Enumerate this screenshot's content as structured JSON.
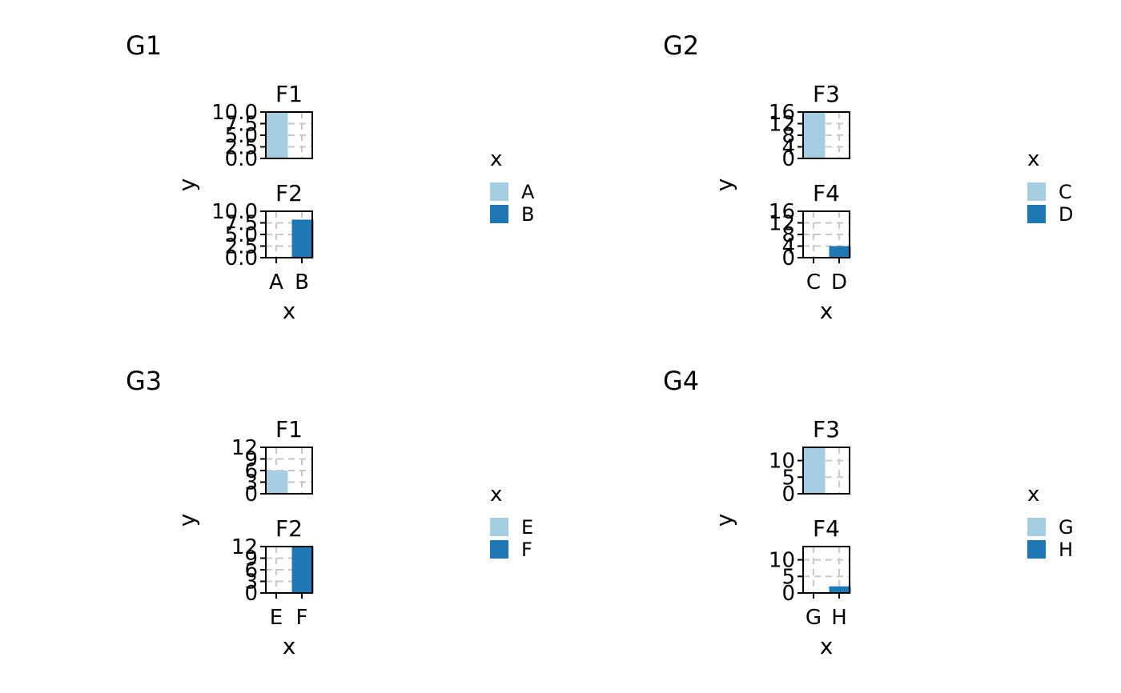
{
  "chart_data": [
    {
      "type": "bar",
      "title": "G1",
      "xlabel": "x",
      "ylabel": "y",
      "legend": {
        "title": "x",
        "placement": "right",
        "items": [
          "A",
          "B"
        ]
      },
      "grid": true,
      "facets": [
        {
          "label": "F1",
          "categories": [
            "A",
            "B"
          ],
          "values": [
            10,
            null
          ],
          "ylim": [
            0,
            10
          ],
          "yticks": [
            "0.0",
            "2.5",
            "5.0",
            "7.5",
            "10.0"
          ]
        },
        {
          "label": "F2",
          "categories": [
            "A",
            "B"
          ],
          "values": [
            null,
            8.2
          ],
          "ylim": [
            0,
            10
          ],
          "yticks": [
            "0.0",
            "2.5",
            "5.0",
            "7.5",
            "10.0"
          ]
        }
      ]
    },
    {
      "type": "bar",
      "title": "G2",
      "xlabel": "x",
      "ylabel": "y",
      "legend": {
        "title": "x",
        "placement": "right",
        "items": [
          "C",
          "D"
        ]
      },
      "grid": true,
      "facets": [
        {
          "label": "F3",
          "categories": [
            "C",
            "D"
          ],
          "values": [
            16,
            null
          ],
          "ylim": [
            0,
            16
          ],
          "yticks": [
            "0",
            "4",
            "8",
            "12",
            "16"
          ]
        },
        {
          "label": "F4",
          "categories": [
            "C",
            "D"
          ],
          "values": [
            null,
            4
          ],
          "ylim": [
            0,
            16
          ],
          "yticks": [
            "0",
            "4",
            "8",
            "12",
            "16"
          ]
        }
      ]
    },
    {
      "type": "bar",
      "title": "G3",
      "xlabel": "x",
      "ylabel": "y",
      "legend": {
        "title": "x",
        "placement": "right",
        "items": [
          "E",
          "F"
        ]
      },
      "grid": true,
      "facets": [
        {
          "label": "F1",
          "categories": [
            "E",
            "F"
          ],
          "values": [
            6,
            null
          ],
          "ylim": [
            0,
            12
          ],
          "yticks": [
            "0",
            "3",
            "6",
            "9",
            "12"
          ]
        },
        {
          "label": "F2",
          "categories": [
            "E",
            "F"
          ],
          "values": [
            null,
            12
          ],
          "ylim": [
            0,
            12
          ],
          "yticks": [
            "0",
            "3",
            "6",
            "9",
            "12"
          ]
        }
      ]
    },
    {
      "type": "bar",
      "title": "G4",
      "xlabel": "x",
      "ylabel": "y",
      "legend": {
        "title": "x",
        "placement": "right",
        "items": [
          "G",
          "H"
        ]
      },
      "grid": true,
      "facets": [
        {
          "label": "F3",
          "categories": [
            "G",
            "H"
          ],
          "values": [
            14,
            null
          ],
          "ylim": [
            0,
            14
          ],
          "yticks": [
            "0",
            "5",
            "10"
          ]
        },
        {
          "label": "F4",
          "categories": [
            "G",
            "H"
          ],
          "values": [
            null,
            2
          ],
          "ylim": [
            0,
            14
          ],
          "yticks": [
            "0",
            "5",
            "10"
          ]
        }
      ]
    }
  ],
  "colors": {
    "series_1": "#a6cee3",
    "series_2": "#1f78b4",
    "grid": "#c8c8c8",
    "axis": "#000000"
  }
}
